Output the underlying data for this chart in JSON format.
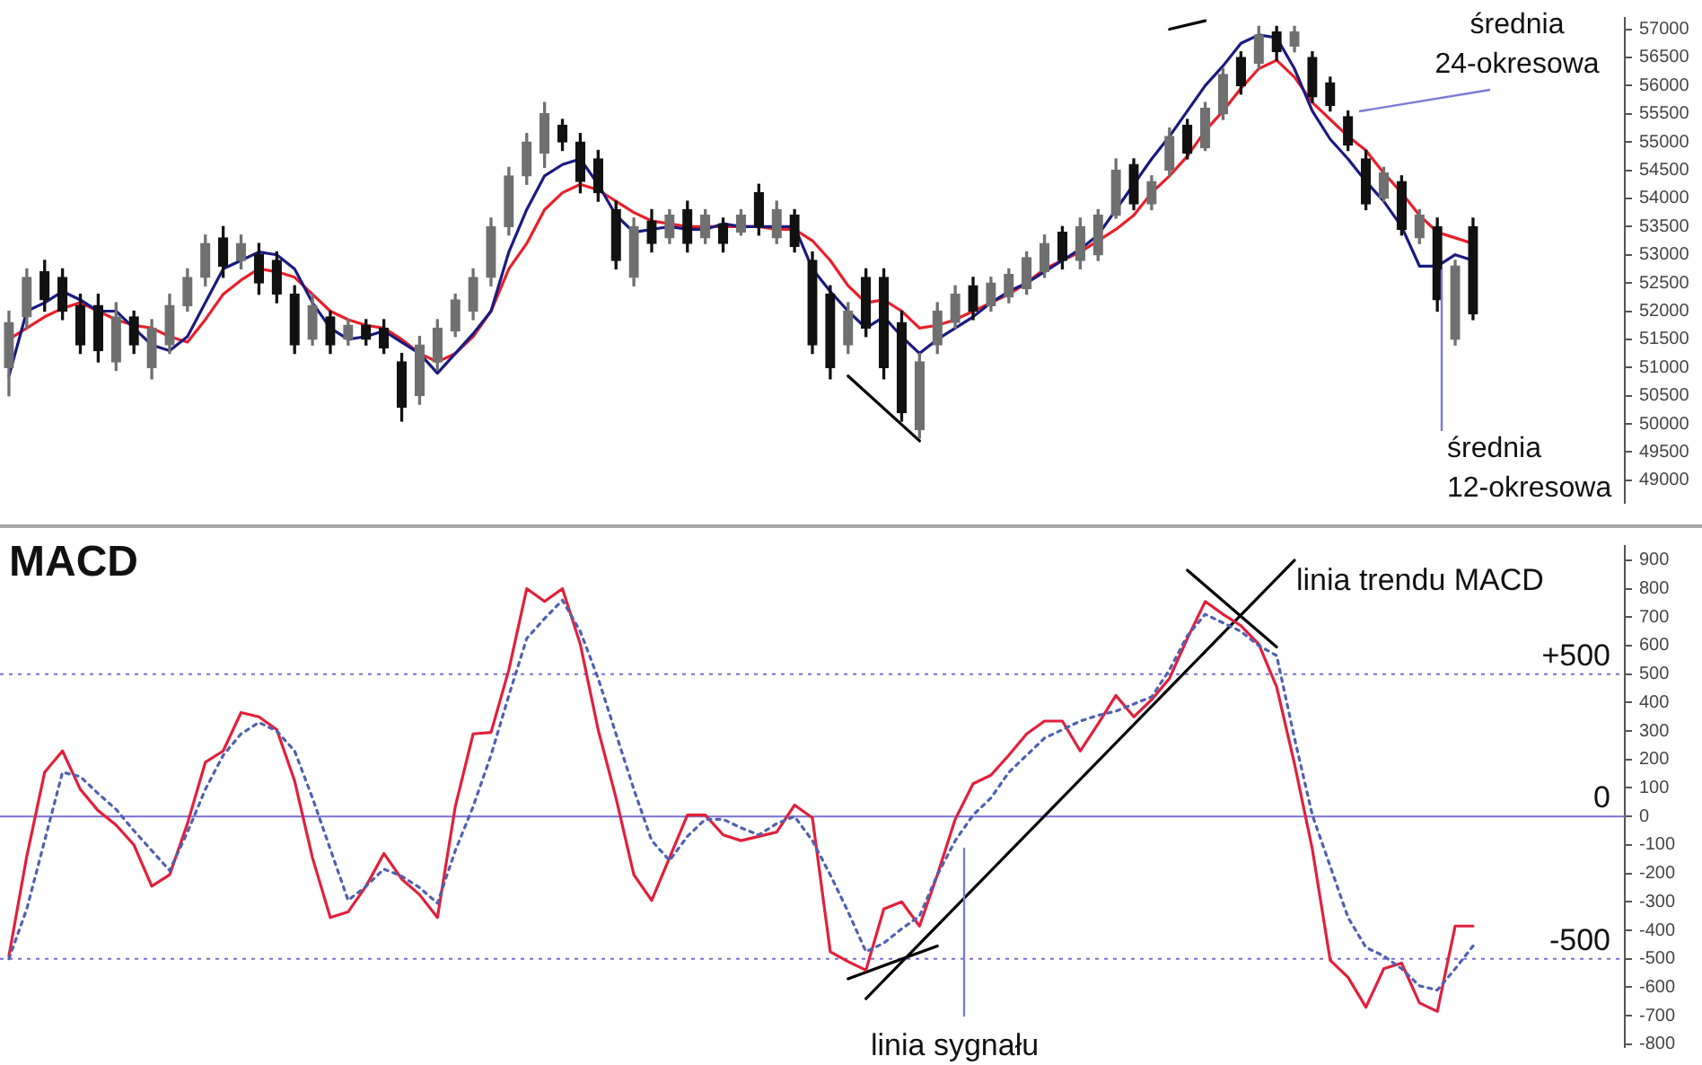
{
  "chart_data": [
    {
      "type": "candlestick",
      "marker": "none",
      "tick_labels": "y",
      "colors": [
        "#707070",
        "#707070",
        "#111111",
        "#111111",
        "#111111",
        "#111111",
        "#707070",
        "#111111",
        "#707070",
        "#707070",
        "#707070",
        "#707070",
        "#111111",
        "#707070",
        "#111111",
        "#111111",
        "#111111",
        "#707070",
        "#111111",
        "#707070",
        "#111111",
        "#111111",
        "#111111",
        "#707070",
        "#707070",
        "#707070",
        "#707070",
        "#707070",
        "#707070",
        "#707070",
        "#707070",
        "#111111",
        "#111111",
        "#111111",
        "#111111",
        "#707070",
        "#111111",
        "#707070",
        "#111111",
        "#707070",
        "#111111",
        "#707070",
        "#111111",
        "#707070",
        "#111111",
        "#111111",
        "#111111",
        "#707070",
        "#111111",
        "#111111",
        "#111111",
        "#707070",
        "#707070",
        "#707070",
        "#111111",
        "#707070",
        "#707070",
        "#707070",
        "#707070",
        "#111111",
        "#707070",
        "#707070",
        "#707070",
        "#111111",
        "#707070",
        "#707070",
        "#111111",
        "#707070",
        "#707070",
        "#111111",
        "#707070",
        "#111111",
        "#707070",
        "#111111",
        "#111111",
        "#111111",
        "#111111",
        "#707070",
        "#111111",
        "#707070",
        "#111111",
        "#707070",
        "#111111",
        null,
        null,
        null,
        null,
        null,
        null,
        null,
        null
      ],
      "categories": [
        null,
        null,
        null,
        null,
        null,
        null,
        null,
        null,
        null,
        null,
        null,
        null,
        null,
        null,
        null,
        null,
        null,
        null,
        null,
        null,
        null,
        null,
        null,
        null,
        null,
        null,
        null,
        null,
        null,
        null,
        null,
        null,
        null,
        null,
        null,
        null,
        null,
        null,
        null,
        null,
        null,
        null,
        null,
        null,
        null,
        null,
        null,
        null,
        null,
        null,
        null,
        null,
        null,
        null,
        null,
        null,
        null,
        null,
        null,
        null,
        null,
        null,
        null,
        null,
        null,
        null,
        null,
        null,
        null,
        null,
        null,
        null,
        null,
        null,
        null,
        null,
        null,
        null,
        null,
        null,
        null,
        null,
        null,
        null,
        null,
        null,
        null,
        null,
        null,
        null,
        null
      ],
      "ohlc": [
        [
          51000,
          52000,
          50500,
          51800
        ],
        [
          51900,
          52750,
          51700,
          52600
        ],
        [
          52700,
          52900,
          52000,
          52200
        ],
        [
          52600,
          52750,
          51850,
          52000
        ],
        [
          52100,
          52300,
          51250,
          51400
        ],
        [
          52100,
          52300,
          51100,
          51300
        ],
        [
          51100,
          52150,
          50950,
          51900
        ],
        [
          51900,
          52000,
          51250,
          51400
        ],
        [
          51000,
          51850,
          50800,
          51700
        ],
        [
          51400,
          52300,
          51250,
          52100
        ],
        [
          52100,
          52750,
          52000,
          52600
        ],
        [
          52600,
          53350,
          52450,
          53200
        ],
        [
          53300,
          53500,
          52600,
          52800
        ],
        [
          52900,
          53350,
          52750,
          53200
        ],
        [
          53000,
          53200,
          52300,
          52500
        ],
        [
          52900,
          53050,
          52150,
          52300
        ],
        [
          52300,
          52450,
          51250,
          51400
        ],
        [
          51500,
          52300,
          51400,
          52100
        ],
        [
          51900,
          52000,
          51250,
          51400
        ],
        [
          51500,
          51850,
          51400,
          51750
        ],
        [
          51750,
          51850,
          51400,
          51500
        ],
        [
          51700,
          51850,
          51250,
          51350
        ],
        [
          51100,
          51250,
          50050,
          50300
        ],
        [
          50500,
          51550,
          50350,
          51400
        ],
        [
          51100,
          51850,
          50950,
          51700
        ],
        [
          51650,
          52300,
          51550,
          52200
        ],
        [
          52000,
          52750,
          51850,
          52600
        ],
        [
          52600,
          53650,
          52450,
          53500
        ],
        [
          53500,
          54550,
          53350,
          54400
        ],
        [
          54400,
          55150,
          54250,
          55000
        ],
        [
          54800,
          55700,
          54550,
          55500
        ],
        [
          55300,
          55400,
          54850,
          55000
        ],
        [
          55000,
          55150,
          54100,
          54300
        ],
        [
          54700,
          54850,
          53950,
          54100
        ],
        [
          53800,
          53950,
          52750,
          52900
        ],
        [
          52600,
          53650,
          52450,
          53500
        ],
        [
          53600,
          53800,
          53050,
          53200
        ],
        [
          53300,
          53800,
          53200,
          53700
        ],
        [
          53800,
          53950,
          53050,
          53200
        ],
        [
          53300,
          53800,
          53200,
          53700
        ],
        [
          53550,
          53650,
          53050,
          53200
        ],
        [
          53400,
          53800,
          53350,
          53700
        ],
        [
          54100,
          54250,
          53350,
          53500
        ],
        [
          53300,
          53950,
          53200,
          53800
        ],
        [
          53700,
          53800,
          53050,
          53150
        ],
        [
          52900,
          53050,
          51250,
          51400
        ],
        [
          52300,
          52450,
          50800,
          51000
        ],
        [
          51400,
          52150,
          51250,
          52000
        ],
        [
          52600,
          52750,
          51550,
          51700
        ],
        [
          52600,
          52750,
          50800,
          51000
        ],
        [
          51800,
          52000,
          50050,
          50200
        ],
        [
          49900,
          51250,
          49750,
          51100
        ],
        [
          51400,
          52150,
          51250,
          52000
        ],
        [
          51800,
          52450,
          51700,
          52300
        ],
        [
          52450,
          52600,
          51850,
          52000
        ],
        [
          52100,
          52600,
          52000,
          52500
        ],
        [
          52250,
          52750,
          52150,
          52650
        ],
        [
          52400,
          53050,
          52300,
          52950
        ],
        [
          52700,
          53350,
          52600,
          53200
        ],
        [
          53400,
          53500,
          52750,
          52900
        ],
        [
          52900,
          53650,
          52750,
          53500
        ],
        [
          53000,
          53800,
          52900,
          53700
        ],
        [
          53700,
          54700,
          53650,
          54500
        ],
        [
          54600,
          54700,
          53800,
          53900
        ],
        [
          53900,
          54400,
          53800,
          54300
        ],
        [
          54500,
          55250,
          54400,
          55100
        ],
        [
          55300,
          55400,
          54700,
          54800
        ],
        [
          54900,
          55700,
          54850,
          55600
        ],
        [
          55500,
          56300,
          55400,
          56200
        ],
        [
          56500,
          56600,
          55850,
          56000
        ],
        [
          56400,
          57050,
          56300,
          56900
        ],
        [
          56950,
          57050,
          56450,
          56600
        ],
        [
          56700,
          57050,
          56600,
          56950
        ],
        [
          56500,
          56600,
          55700,
          55800
        ],
        [
          56050,
          56150,
          55550,
          55650
        ],
        [
          55450,
          55550,
          54850,
          54950
        ],
        [
          54700,
          54850,
          53800,
          53900
        ],
        [
          54000,
          54550,
          53950,
          54450
        ],
        [
          54300,
          54400,
          53350,
          53450
        ],
        [
          53300,
          53800,
          53200,
          53700
        ],
        [
          53500,
          53650,
          52000,
          52200
        ],
        [
          51500,
          52900,
          51400,
          52800
        ],
        [
          53500,
          53650,
          51850,
          51950
        ],
        null,
        null,
        null,
        null,
        null,
        null,
        null,
        null
      ],
      "series": [
        {
          "type": "line",
          "color": "#1a1a80",
          "values": [
            50850,
            52000,
            52150,
            52350,
            52200,
            52000,
            52000,
            51700,
            51400,
            51300,
            51550,
            52150,
            52750,
            52900,
            53050,
            53000,
            52750,
            52150,
            51700,
            51500,
            51550,
            51650,
            51450,
            51250,
            50900,
            51250,
            51600,
            52000,
            53050,
            53800,
            54400,
            54600,
            54700,
            54250,
            53700,
            53400,
            53450,
            53500,
            53450,
            53450,
            53550,
            53500,
            53500,
            53500,
            53500,
            52750,
            52350,
            52000,
            51700,
            51900,
            51550,
            51250,
            51500,
            51700,
            51900,
            52150,
            52350,
            52500,
            52700,
            52900,
            53100,
            53350,
            53800,
            54250,
            54700,
            55100,
            55550,
            56000,
            56350,
            56750,
            56900,
            56850,
            56300,
            55550,
            55050,
            54700,
            54300,
            53950,
            53500,
            52800,
            52800,
            53000,
            52900,
            null,
            null,
            null,
            null,
            null,
            null,
            null,
            null
          ]
        },
        {
          "type": "line",
          "color": "#e8202a",
          "values": [
            51500,
            51700,
            51900,
            52050,
            52150,
            52000,
            51850,
            51750,
            51700,
            51550,
            51450,
            51850,
            52300,
            52550,
            52750,
            52700,
            52600,
            52300,
            52000,
            51850,
            51750,
            51700,
            51500,
            51250,
            51100,
            51250,
            51550,
            52000,
            52750,
            53200,
            53800,
            54100,
            54250,
            54150,
            53950,
            53750,
            53600,
            53550,
            53500,
            53500,
            53500,
            53500,
            53500,
            53450,
            53450,
            53250,
            52900,
            52450,
            52150,
            52200,
            52000,
            51700,
            51750,
            51850,
            52000,
            52150,
            52300,
            52500,
            52750,
            52900,
            53050,
            53250,
            53450,
            53700,
            54100,
            54400,
            54750,
            55200,
            55550,
            55950,
            56300,
            56450,
            56150,
            55700,
            55400,
            55100,
            54850,
            54450,
            54100,
            53700,
            53400,
            53300,
            53200,
            null,
            null,
            null,
            null,
            null,
            null,
            null,
            null
          ]
        },
        {
          "type": "line",
          "color": "#000000",
          "values": [
            null,
            null,
            null,
            null,
            null,
            null,
            null,
            null,
            null,
            null,
            null,
            null,
            null,
            null,
            null,
            null,
            null,
            null,
            null,
            null,
            null,
            null,
            null,
            null,
            null,
            null,
            null,
            null,
            null,
            null,
            null,
            null,
            null,
            null,
            null,
            null,
            null,
            null,
            null,
            null,
            null,
            null,
            null,
            null,
            null,
            null,
            null,
            50850,
            null,
            null,
            null,
            49700,
            null,
            null,
            null,
            null,
            null,
            null,
            null,
            null,
            null,
            null,
            null,
            null,
            null,
            null,
            null,
            null,
            null,
            null,
            null,
            null,
            null,
            null,
            null,
            null,
            null,
            null,
            null,
            null,
            null,
            null,
            null,
            null,
            null,
            null,
            null,
            null,
            null,
            null,
            null
          ]
        },
        {
          "type": "line",
          "color": "#000000",
          "values": [
            null,
            null,
            null,
            null,
            null,
            null,
            null,
            null,
            null,
            null,
            null,
            null,
            null,
            null,
            null,
            null,
            null,
            null,
            null,
            null,
            null,
            null,
            null,
            null,
            null,
            null,
            null,
            null,
            null,
            null,
            null,
            null,
            null,
            null,
            null,
            null,
            null,
            null,
            null,
            null,
            null,
            null,
            null,
            null,
            null,
            null,
            null,
            null,
            null,
            null,
            null,
            null,
            null,
            null,
            null,
            null,
            null,
            null,
            null,
            null,
            null,
            null,
            null,
            null,
            null,
            57000,
            null,
            57150,
            null,
            null,
            null,
            null,
            null,
            null,
            null,
            null,
            null,
            null,
            null,
            null,
            null,
            null,
            null,
            null,
            null,
            null,
            null,
            null,
            null,
            null,
            null
          ]
        }
      ],
      "ylim": [
        48600,
        57200
      ],
      "yticks": [
        49000,
        49500,
        50000,
        50500,
        51000,
        51500,
        52000,
        52500,
        53000,
        53500,
        54000,
        54500,
        55000,
        55500,
        56000,
        56500,
        57000
      ],
      "annotations": [
        "średnia 24-okresowa",
        "średnia 12-okresowa"
      ]
    },
    {
      "type": "line",
      "marker": "none",
      "tick_labels": "y",
      "categories": [
        null,
        null,
        null,
        null,
        null,
        null,
        null,
        null,
        null,
        null,
        null,
        null,
        null,
        null,
        null,
        null,
        null,
        null,
        null,
        null,
        null,
        null,
        null,
        null,
        null,
        null,
        null,
        null,
        null,
        null,
        null,
        null,
        null,
        null,
        null,
        null,
        null,
        null,
        null,
        null,
        null,
        null,
        null,
        null,
        null,
        null,
        null,
        null,
        null,
        null,
        null,
        null,
        null,
        null,
        null,
        null,
        null,
        null,
        null,
        null,
        null,
        null,
        null,
        null,
        null,
        null,
        null,
        null,
        null,
        null,
        null,
        null,
        null,
        null,
        null,
        null,
        null,
        null,
        null,
        null,
        null,
        null,
        null,
        null,
        null,
        null,
        null,
        null,
        null,
        null,
        null
      ],
      "series": [
        {
          "color": "#5060b0",
          "line_style": "dotted",
          "values": [
            -500,
            -325,
            -85,
            155,
            140,
            80,
            25,
            -50,
            -120,
            -190,
            -55,
            95,
            215,
            290,
            330,
            300,
            230,
            65,
            -115,
            -295,
            -245,
            -185,
            -210,
            -250,
            -305,
            -120,
            35,
            215,
            425,
            625,
            695,
            760,
            650,
            485,
            290,
            95,
            -85,
            -155,
            -70,
            -10,
            -10,
            -40,
            -65,
            -25,
            0,
            -85,
            -205,
            -335,
            -475,
            -445,
            -395,
            -350,
            -205,
            -85,
            5,
            65,
            155,
            215,
            275,
            305,
            335,
            355,
            370,
            395,
            420,
            515,
            635,
            710,
            680,
            650,
            600,
            565,
            275,
            5,
            -175,
            -355,
            -460,
            -490,
            -535,
            -595,
            -610,
            -535,
            -455,
            null,
            null,
            null,
            null,
            null,
            null,
            null,
            null
          ]
        },
        {
          "color": "#e0203c",
          "values": [
            -490,
            -140,
            155,
            230,
            95,
            20,
            -30,
            -100,
            -245,
            -205,
            -25,
            190,
            230,
            365,
            350,
            305,
            125,
            -145,
            -355,
            -335,
            -245,
            -130,
            -220,
            -275,
            -355,
            35,
            290,
            295,
            515,
            800,
            755,
            800,
            605,
            305,
            65,
            -205,
            -295,
            -145,
            5,
            5,
            -65,
            -85,
            -70,
            -55,
            40,
            -5,
            -475,
            -510,
            -540,
            -325,
            -300,
            -385,
            -205,
            -10,
            115,
            145,
            215,
            290,
            335,
            335,
            230,
            325,
            425,
            350,
            410,
            485,
            625,
            755,
            710,
            670,
            605,
            455,
            185,
            -115,
            -505,
            -565,
            -670,
            -535,
            -515,
            -655,
            -685,
            -385,
            -385,
            null,
            null,
            null,
            null,
            null,
            null,
            null,
            null
          ]
        },
        {
          "color": "#000000",
          "values": [
            null,
            null,
            null,
            null,
            null,
            null,
            null,
            null,
            null,
            null,
            null,
            null,
            null,
            null,
            null,
            null,
            null,
            null,
            null,
            null,
            null,
            null,
            null,
            null,
            null,
            null,
            null,
            null,
            null,
            null,
            null,
            null,
            null,
            null,
            null,
            null,
            null,
            null,
            null,
            null,
            null,
            null,
            null,
            null,
            null,
            null,
            null,
            null,
            -640,
            null,
            null,
            null,
            null,
            null,
            null,
            null,
            null,
            null,
            null,
            null,
            null,
            null,
            null,
            null,
            null,
            null,
            null,
            null,
            null,
            null,
            null,
            null,
            900,
            null,
            null,
            null,
            null,
            null,
            null,
            null,
            null,
            null,
            null,
            null,
            null,
            null,
            null,
            null,
            null,
            null,
            null
          ]
        },
        {
          "color": "#000000",
          "values": [
            null,
            null,
            null,
            null,
            null,
            null,
            null,
            null,
            null,
            null,
            null,
            null,
            null,
            null,
            null,
            null,
            null,
            null,
            null,
            null,
            null,
            null,
            null,
            null,
            null,
            null,
            null,
            null,
            null,
            null,
            null,
            null,
            null,
            null,
            null,
            null,
            null,
            null,
            null,
            null,
            null,
            null,
            null,
            null,
            null,
            null,
            null,
            -570,
            null,
            null,
            null,
            null,
            -455,
            null,
            null,
            null,
            null,
            null,
            null,
            null,
            null,
            null,
            null,
            null,
            null,
            null,
            null,
            null,
            null,
            null,
            null,
            null,
            null,
            null,
            null,
            null,
            null,
            null,
            null,
            null,
            null,
            null,
            null,
            null,
            null,
            null,
            null,
            null,
            null,
            null,
            null
          ]
        },
        {
          "color": "#000000",
          "values": [
            null,
            null,
            null,
            null,
            null,
            null,
            null,
            null,
            null,
            null,
            null,
            null,
            null,
            null,
            null,
            null,
            null,
            null,
            null,
            null,
            null,
            null,
            null,
            null,
            null,
            null,
            null,
            null,
            null,
            null,
            null,
            null,
            null,
            null,
            null,
            null,
            null,
            null,
            null,
            null,
            null,
            null,
            null,
            null,
            null,
            null,
            null,
            null,
            null,
            null,
            null,
            null,
            null,
            null,
            null,
            null,
            null,
            null,
            null,
            null,
            null,
            null,
            null,
            null,
            null,
            null,
            865,
            null,
            null,
            null,
            null,
            595,
            null,
            null,
            null,
            null,
            null,
            null,
            null,
            null,
            null,
            null,
            null,
            null,
            null,
            null,
            null,
            null,
            null,
            null,
            null
          ]
        }
      ],
      "ylim": [
        -810,
        950
      ],
      "yticks": [
        -800,
        -700,
        -600,
        -500,
        -400,
        -300,
        -200,
        -100,
        0,
        100,
        200,
        300,
        400,
        500,
        600,
        700,
        800,
        900
      ],
      "ref_lines": [
        {
          "axis": "y",
          "value": 500,
          "label": "+500",
          "color": "#7a6fd0",
          "line_style": "dotted"
        },
        {
          "axis": "y",
          "value": 0,
          "label": "0",
          "color": "#7a6fd0",
          "line_style": "solid"
        },
        {
          "axis": "y",
          "value": -500,
          "label": "-500",
          "color": "#7a6fd0",
          "line_style": "dotted"
        }
      ],
      "annotations": [
        "MACD",
        "linia trendu MACD",
        "linia sygnału"
      ]
    }
  ]
}
